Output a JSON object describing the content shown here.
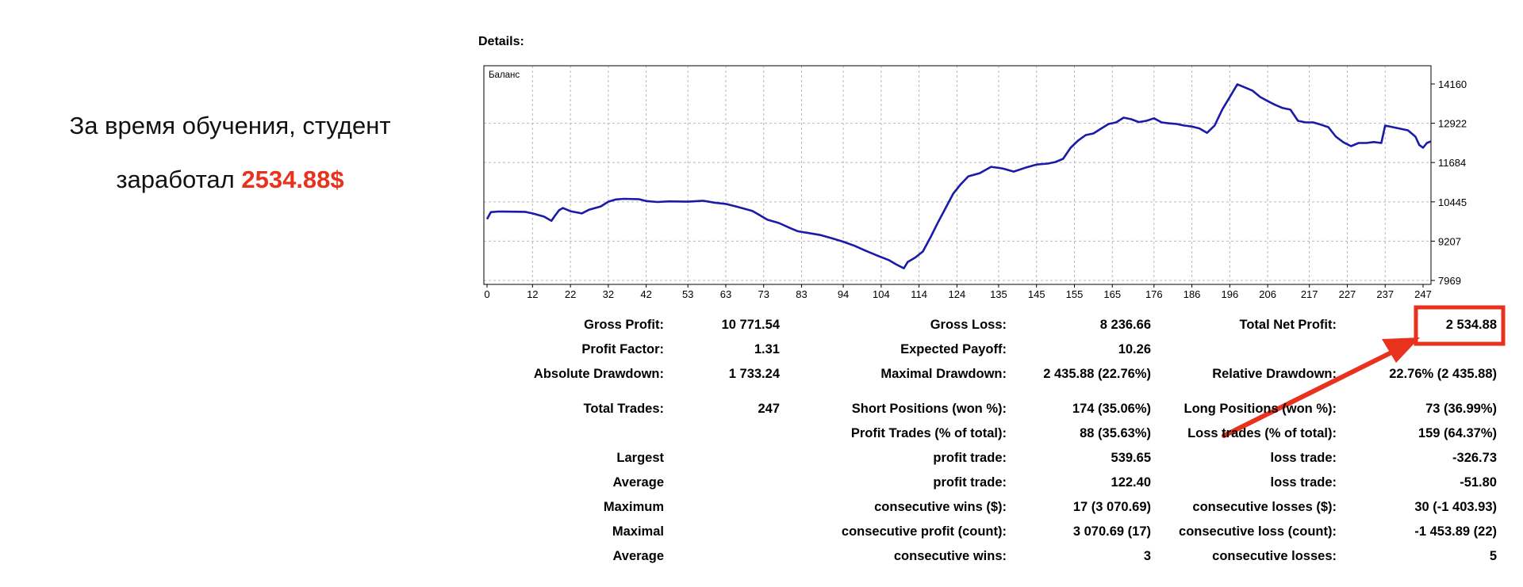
{
  "caption": {
    "line1": "За время обучения, студент",
    "line2_prefix": "заработал ",
    "amount": "2534.88$"
  },
  "details_title": "Details:",
  "colors": {
    "balance_line": "#1a1aa8",
    "highlight": "#e8321e",
    "grid": "#b8b8b8"
  },
  "chart_data": {
    "type": "line",
    "title": "Баланс",
    "grid": true,
    "ylim": [
      7969,
      14160
    ],
    "xlim": [
      0,
      250
    ],
    "x_ticks": [
      "0",
      "12",
      "22",
      "32",
      "42",
      "53",
      "63",
      "73",
      "83",
      "94",
      "104",
      "114",
      "124",
      "135",
      "145",
      "155",
      "165",
      "176",
      "186",
      "196",
      "206",
      "217",
      "227",
      "237",
      "247"
    ],
    "y_ticks": [
      "14160",
      "12922",
      "11684",
      "10445",
      "9207",
      "7969"
    ],
    "series": [
      {
        "values": [
          [
            0,
            9900
          ],
          [
            1,
            10120
          ],
          [
            3,
            10140
          ],
          [
            10,
            10130
          ],
          [
            12,
            10080
          ],
          [
            15,
            9980
          ],
          [
            17,
            9850
          ],
          [
            18,
            10020
          ],
          [
            19,
            10180
          ],
          [
            20,
            10250
          ],
          [
            22,
            10150
          ],
          [
            25,
            10080
          ],
          [
            27,
            10200
          ],
          [
            30,
            10300
          ],
          [
            32,
            10450
          ],
          [
            34,
            10520
          ],
          [
            36,
            10540
          ],
          [
            40,
            10530
          ],
          [
            42,
            10470
          ],
          [
            45,
            10440
          ],
          [
            48,
            10460
          ],
          [
            53,
            10450
          ],
          [
            57,
            10480
          ],
          [
            60,
            10420
          ],
          [
            63,
            10380
          ],
          [
            66,
            10290
          ],
          [
            70,
            10160
          ],
          [
            72,
            10020
          ],
          [
            74,
            9880
          ],
          [
            77,
            9780
          ],
          [
            80,
            9620
          ],
          [
            82,
            9520
          ],
          [
            85,
            9460
          ],
          [
            88,
            9400
          ],
          [
            91,
            9300
          ],
          [
            94,
            9190
          ],
          [
            97,
            9060
          ],
          [
            100,
            8900
          ],
          [
            103,
            8750
          ],
          [
            106,
            8610
          ],
          [
            108,
            8470
          ],
          [
            110,
            8350
          ],
          [
            111,
            8550
          ],
          [
            113,
            8690
          ],
          [
            115,
            8880
          ],
          [
            117,
            9320
          ],
          [
            119,
            9800
          ],
          [
            121,
            10250
          ],
          [
            123,
            10700
          ],
          [
            125,
            11000
          ],
          [
            127,
            11250
          ],
          [
            130,
            11350
          ],
          [
            133,
            11550
          ],
          [
            136,
            11500
          ],
          [
            139,
            11400
          ],
          [
            142,
            11520
          ],
          [
            145,
            11620
          ],
          [
            148,
            11650
          ],
          [
            150,
            11700
          ],
          [
            152,
            11800
          ],
          [
            154,
            12150
          ],
          [
            156,
            12380
          ],
          [
            158,
            12550
          ],
          [
            160,
            12600
          ],
          [
            162,
            12750
          ],
          [
            164,
            12900
          ],
          [
            166,
            12950
          ],
          [
            168,
            13100
          ],
          [
            170,
            13050
          ],
          [
            172,
            12960
          ],
          [
            174,
            13000
          ],
          [
            176,
            13080
          ],
          [
            178,
            12950
          ],
          [
            180,
            12920
          ],
          [
            182,
            12900
          ],
          [
            184,
            12850
          ],
          [
            186,
            12820
          ],
          [
            188,
            12760
          ],
          [
            190,
            12620
          ],
          [
            192,
            12850
          ],
          [
            194,
            13350
          ],
          [
            196,
            13750
          ],
          [
            198,
            14150
          ],
          [
            200,
            14050
          ],
          [
            202,
            13950
          ],
          [
            204,
            13750
          ],
          [
            206,
            13620
          ],
          [
            208,
            13500
          ],
          [
            210,
            13400
          ],
          [
            212,
            13350
          ],
          [
            214,
            13000
          ],
          [
            216,
            12950
          ],
          [
            218,
            12950
          ],
          [
            220,
            12880
          ],
          [
            222,
            12800
          ],
          [
            224,
            12500
          ],
          [
            226,
            12320
          ],
          [
            228,
            12200
          ],
          [
            230,
            12300
          ],
          [
            232,
            12300
          ],
          [
            234,
            12330
          ],
          [
            236,
            12300
          ],
          [
            237,
            12850
          ],
          [
            239,
            12800
          ],
          [
            241,
            12750
          ],
          [
            243,
            12700
          ],
          [
            245,
            12500
          ],
          [
            246,
            12240
          ],
          [
            247,
            12150
          ],
          [
            248,
            12300
          ],
          [
            250,
            12350
          ]
        ]
      }
    ]
  },
  "stats": {
    "gross_profit_label": "Gross Profit:",
    "gross_profit": "10 771.54",
    "gross_loss_label": "Gross Loss:",
    "gross_loss": "8 236.66",
    "total_net_profit_label": "Total Net Profit:",
    "total_net_profit": "2 534.88",
    "profit_factor_label": "Profit Factor:",
    "profit_factor": "1.31",
    "expected_payoff_label": "Expected Payoff:",
    "expected_payoff": "10.26",
    "absolute_drawdown_label": "Absolute Drawdown:",
    "absolute_drawdown": "1 733.24",
    "maximal_drawdown_label": "Maximal Drawdown:",
    "maximal_drawdown": "2 435.88 (22.76%)",
    "relative_drawdown_label": "Relative Drawdown:",
    "relative_drawdown": "22.76% (2 435.88)",
    "total_trades_label": "Total Trades:",
    "total_trades": "247",
    "short_positions_label": "Short Positions (won %):",
    "short_positions": "174 (35.06%)",
    "long_positions_label": "Long Positions (won %):",
    "long_positions": "73 (36.99%)",
    "profit_trades_label": "Profit Trades (% of total):",
    "profit_trades": "88 (35.63%)",
    "loss_trades_label": "Loss trades (% of total):",
    "loss_trades": "159 (64.37%)",
    "largest_label": "Largest",
    "largest_profit_label": "profit trade:",
    "largest_profit": "539.65",
    "largest_loss_label": "loss trade:",
    "largest_loss": "-326.73",
    "average_label": "Average",
    "average_profit_label": "profit trade:",
    "average_profit": "122.40",
    "average_loss_label": "loss trade:",
    "average_loss": "-51.80",
    "maximum_label": "Maximum",
    "max_consec_wins_label": "consecutive wins ($):",
    "max_consec_wins": "17 (3 070.69)",
    "max_consec_losses_label": "consecutive losses ($):",
    "max_consec_losses": "30 (-1 403.93)",
    "maximal_label": "Maximal",
    "maximal_consec_profit_label": "consecutive profit (count):",
    "maximal_consec_profit": "3 070.69 (17)",
    "maximal_consec_loss_label": "consecutive loss (count):",
    "maximal_consec_loss": "-1 453.89 (22)",
    "average2_label": "Average",
    "avg_consec_wins_label": "consecutive wins:",
    "avg_consec_wins": "3",
    "avg_consec_losses_label": "consecutive losses:",
    "avg_consec_losses": "5"
  }
}
